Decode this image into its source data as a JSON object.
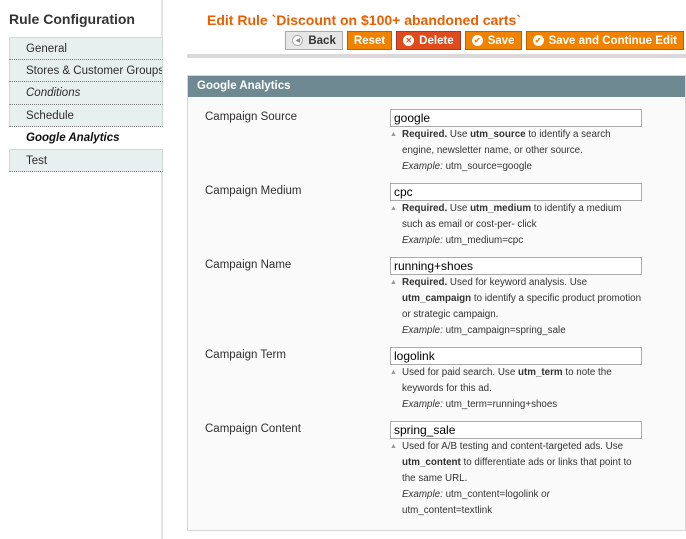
{
  "sidebar": {
    "title": "Rule Configuration",
    "tabs": [
      {
        "label": "General",
        "style": ""
      },
      {
        "label": "Stores & Customer Groups",
        "style": ""
      },
      {
        "label": "Conditions",
        "style": "italic"
      },
      {
        "label": "Schedule",
        "style": ""
      },
      {
        "label": "Google Analytics",
        "style": "active"
      },
      {
        "label": "Test",
        "style": ""
      }
    ]
  },
  "header": {
    "title": "Edit Rule `Discount on $100+ abandoned carts`",
    "buttons": {
      "back": "Back",
      "reset": "Reset",
      "delete": "Delete",
      "save": "Save",
      "save_continue": "Save and Continue Edit"
    }
  },
  "panel": {
    "title": "Google Analytics",
    "fields": [
      {
        "label": "Campaign Source",
        "value": "google",
        "note": [
          [
            {
              "t": "Required.",
              "s": "b"
            },
            {
              "t": " Use "
            },
            {
              "t": "utm_source",
              "s": "b"
            },
            {
              "t": " to identify a search"
            }
          ],
          [
            {
              "t": "engine, newsletter name, or other source."
            }
          ],
          [
            {
              "t": "Example:",
              "s": "i"
            },
            {
              "t": " utm_source=google"
            }
          ]
        ]
      },
      {
        "label": "Campaign Medium",
        "value": "cpc",
        "note": [
          [
            {
              "t": "Required.",
              "s": "b"
            },
            {
              "t": " Use "
            },
            {
              "t": "utm_medium",
              "s": "b"
            },
            {
              "t": " to identify a medium"
            }
          ],
          [
            {
              "t": "such as email or cost-per- click"
            }
          ],
          [
            {
              "t": "Example:",
              "s": "i"
            },
            {
              "t": " utm_medium=cpc"
            }
          ]
        ]
      },
      {
        "label": "Campaign Name",
        "value": "running+shoes",
        "note": [
          [
            {
              "t": "Required.",
              "s": "b"
            },
            {
              "t": " Used for keyword analysis. Use"
            }
          ],
          [
            {
              "t": "utm_campaign",
              "s": "b"
            },
            {
              "t": " to identify a specific product promotion"
            }
          ],
          [
            {
              "t": "or strategic campaign."
            }
          ],
          [
            {
              "t": "Example:",
              "s": "i"
            },
            {
              "t": " utm_campaign=spring_sale"
            }
          ]
        ]
      },
      {
        "label": "Campaign Term",
        "value": "logolink",
        "note": [
          [
            {
              "t": "Used for paid search. Use "
            },
            {
              "t": "utm_term",
              "s": "b"
            },
            {
              "t": " to note the"
            }
          ],
          [
            {
              "t": "keywords for this ad."
            }
          ],
          [
            {
              "t": "Example:",
              "s": "i"
            },
            {
              "t": " utm_term=running+shoes"
            }
          ]
        ]
      },
      {
        "label": "Campaign Content",
        "value": "spring_sale",
        "note": [
          [
            {
              "t": "Used for A/B testing and content-targeted ads. Use"
            }
          ],
          [
            {
              "t": "utm_content",
              "s": "b"
            },
            {
              "t": " to differentiate ads or links that point to"
            }
          ],
          [
            {
              "t": "the same URL."
            }
          ],
          [
            {
              "t": "Example:",
              "s": "i"
            },
            {
              "t": " utm_content=logolink "
            },
            {
              "t": "or",
              "s": "i"
            }
          ],
          [
            {
              "t": "utm_content=textlink"
            }
          ]
        ]
      }
    ]
  }
}
